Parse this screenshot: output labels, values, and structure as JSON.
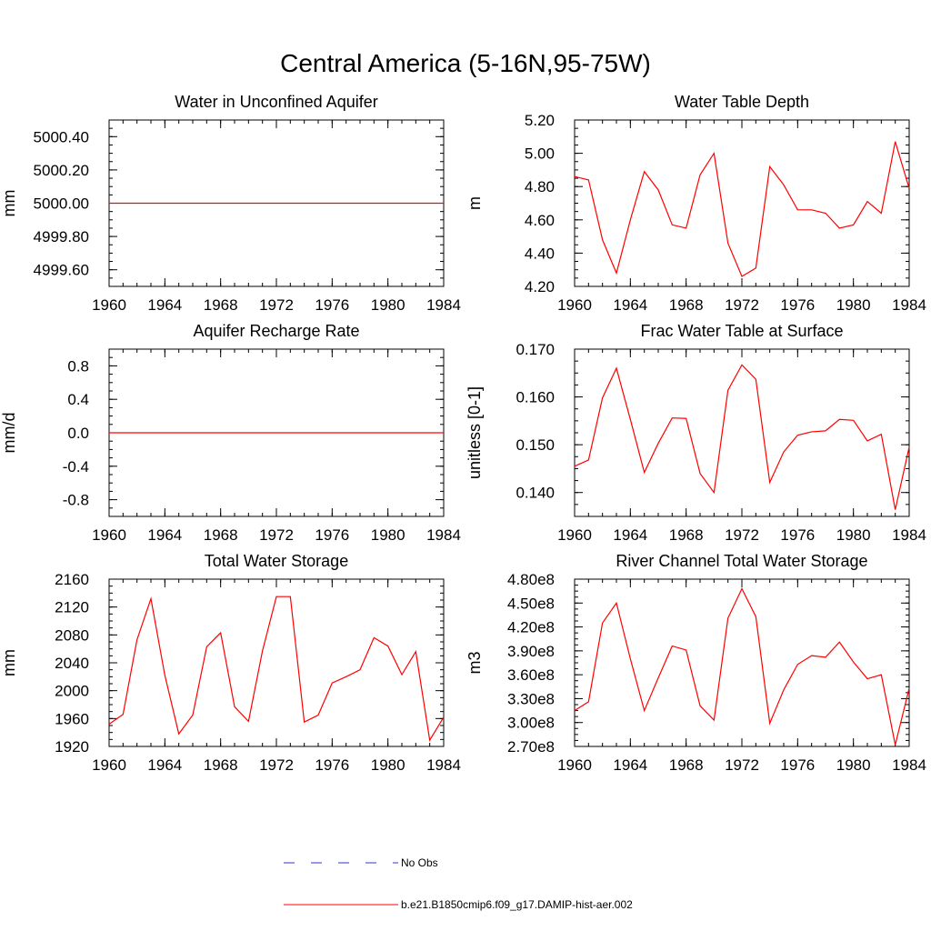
{
  "figure": {
    "title": "Central America (5-16N,95-75W)"
  },
  "colors": {
    "model_line": "#ff0000",
    "obs_line": "#3333cc",
    "axis": "#000000"
  },
  "legend": {
    "entries": [
      {
        "label": "No Obs",
        "style": "dashed",
        "color": "#3333cc"
      },
      {
        "label": "b.e21.B1850cmip6.f09_g17.DAMIP-hist-aer.002",
        "style": "solid",
        "color": "#ff0000"
      }
    ]
  },
  "chart_data": [
    {
      "type": "line",
      "title": "Water in Unconfined Aquifer",
      "ylabel": "mm",
      "xlabel": "",
      "xlim": [
        1960,
        1984
      ],
      "ylim": [
        4999.5,
        5000.5
      ],
      "x_ticks": [
        "1960",
        "1964",
        "1968",
        "1972",
        "1976",
        "1980",
        "1984"
      ],
      "y_ticks": [
        {
          "value": 4999.6,
          "label": "4999.60"
        },
        {
          "value": 4999.8,
          "label": "4999.80"
        },
        {
          "value": 5000.0,
          "label": "5000.00"
        },
        {
          "value": 5000.2,
          "label": "5000.20"
        },
        {
          "value": 5000.4,
          "label": "5000.40"
        }
      ],
      "x": [
        1960,
        1961,
        1962,
        1963,
        1964,
        1965,
        1966,
        1967,
        1968,
        1969,
        1970,
        1971,
        1972,
        1973,
        1974,
        1975,
        1976,
        1977,
        1978,
        1979,
        1980,
        1981,
        1982,
        1983,
        1984
      ],
      "series": [
        {
          "values": [
            5000,
            5000,
            5000,
            5000,
            5000,
            5000,
            5000,
            5000,
            5000,
            5000,
            5000,
            5000,
            5000,
            5000,
            5000,
            5000,
            5000,
            5000,
            5000,
            5000,
            5000,
            5000,
            5000,
            5000,
            5000
          ]
        }
      ]
    },
    {
      "type": "line",
      "title": "Water Table Depth",
      "ylabel": "m",
      "xlabel": "",
      "xlim": [
        1960,
        1984
      ],
      "ylim": [
        4.2,
        5.2
      ],
      "x_ticks": [
        "1960",
        "1964",
        "1968",
        "1972",
        "1976",
        "1980",
        "1984"
      ],
      "y_ticks": [
        {
          "value": 4.2,
          "label": "4.20"
        },
        {
          "value": 4.4,
          "label": "4.40"
        },
        {
          "value": 4.6,
          "label": "4.60"
        },
        {
          "value": 4.8,
          "label": "4.80"
        },
        {
          "value": 5.0,
          "label": "5.00"
        },
        {
          "value": 5.2,
          "label": "5.20"
        }
      ],
      "x": [
        1960,
        1961,
        1962,
        1963,
        1964,
        1965,
        1966,
        1967,
        1968,
        1969,
        1970,
        1971,
        1972,
        1973,
        1974,
        1975,
        1976,
        1977,
        1978,
        1979,
        1980,
        1981,
        1982,
        1983,
        1984
      ],
      "series": [
        {
          "values": [
            4.86,
            4.84,
            4.48,
            4.28,
            4.6,
            4.89,
            4.78,
            4.57,
            4.55,
            4.87,
            5.0,
            4.46,
            4.26,
            4.31,
            4.92,
            4.81,
            4.66,
            4.66,
            4.64,
            4.55,
            4.57,
            4.71,
            4.64,
            5.07,
            4.79
          ]
        }
      ]
    },
    {
      "type": "line",
      "title": "Aquifer Recharge Rate",
      "ylabel": "mm/d",
      "xlabel": "",
      "xlim": [
        1960,
        1984
      ],
      "ylim": [
        -1.0,
        1.0
      ],
      "x_ticks": [
        "1960",
        "1964",
        "1968",
        "1972",
        "1976",
        "1980",
        "1984"
      ],
      "y_ticks": [
        {
          "value": -0.8,
          "label": "-0.8"
        },
        {
          "value": -0.4,
          "label": "-0.4"
        },
        {
          "value": 0.0,
          "label": "0.0"
        },
        {
          "value": 0.4,
          "label": "0.4"
        },
        {
          "value": 0.8,
          "label": "0.8"
        }
      ],
      "x": [
        1960,
        1961,
        1962,
        1963,
        1964,
        1965,
        1966,
        1967,
        1968,
        1969,
        1970,
        1971,
        1972,
        1973,
        1974,
        1975,
        1976,
        1977,
        1978,
        1979,
        1980,
        1981,
        1982,
        1983,
        1984
      ],
      "series": [
        {
          "values": [
            0,
            0,
            0,
            0,
            0,
            0,
            0,
            0,
            0,
            0,
            0,
            0,
            0,
            0,
            0,
            0,
            0,
            0,
            0,
            0,
            0,
            0,
            0,
            0,
            0
          ]
        }
      ]
    },
    {
      "type": "line",
      "title": "Frac Water Table at Surface",
      "ylabel": "unitless [0-1]",
      "xlabel": "",
      "xlim": [
        1960,
        1984
      ],
      "ylim": [
        0.135,
        0.17
      ],
      "x_ticks": [
        "1960",
        "1964",
        "1968",
        "1972",
        "1976",
        "1980",
        "1984"
      ],
      "y_ticks": [
        {
          "value": 0.14,
          "label": "0.140"
        },
        {
          "value": 0.15,
          "label": "0.150"
        },
        {
          "value": 0.16,
          "label": "0.160"
        },
        {
          "value": 0.17,
          "label": "0.170"
        }
      ],
      "x": [
        1960,
        1961,
        1962,
        1963,
        1964,
        1965,
        1966,
        1967,
        1968,
        1969,
        1970,
        1971,
        1972,
        1973,
        1974,
        1975,
        1976,
        1977,
        1978,
        1979,
        1980,
        1981,
        1982,
        1983,
        1984
      ],
      "series": [
        {
          "values": [
            0.1455,
            0.1468,
            0.1598,
            0.166,
            0.1553,
            0.1442,
            0.1503,
            0.1556,
            0.1555,
            0.144,
            0.14,
            0.1614,
            0.1667,
            0.1637,
            0.1421,
            0.1485,
            0.152,
            0.1527,
            0.1529,
            0.1553,
            0.1551,
            0.1508,
            0.1522,
            0.1364,
            0.1495
          ]
        }
      ]
    },
    {
      "type": "line",
      "title": "Total Water Storage",
      "ylabel": "mm",
      "xlabel": "",
      "xlim": [
        1960,
        1984
      ],
      "ylim": [
        1920,
        2160
      ],
      "x_ticks": [
        "1960",
        "1964",
        "1968",
        "1972",
        "1976",
        "1980",
        "1984"
      ],
      "y_ticks": [
        {
          "value": 1920,
          "label": "1920"
        },
        {
          "value": 1960,
          "label": "1960"
        },
        {
          "value": 2000,
          "label": "2000"
        },
        {
          "value": 2040,
          "label": "2040"
        },
        {
          "value": 2080,
          "label": "2080"
        },
        {
          "value": 2120,
          "label": "2120"
        },
        {
          "value": 2160,
          "label": "2160"
        }
      ],
      "x": [
        1960,
        1961,
        1962,
        1963,
        1964,
        1965,
        1966,
        1967,
        1968,
        1969,
        1970,
        1971,
        1972,
        1973,
        1974,
        1975,
        1976,
        1977,
        1978,
        1979,
        1980,
        1981,
        1982,
        1983,
        1984
      ],
      "series": [
        {
          "values": [
            1952,
            1966,
            2073,
            2132,
            2022,
            1938,
            1965,
            2063,
            2083,
            1977,
            1956,
            2057,
            2135,
            2135,
            1955,
            1965,
            2011,
            2020,
            2030,
            2076,
            2064,
            2023,
            2056,
            1929,
            1962
          ]
        }
      ]
    },
    {
      "type": "line",
      "title": "River Channel Total Water Storage",
      "ylabel": "m3",
      "xlabel": "",
      "xlim": [
        1960,
        1984
      ],
      "ylim": [
        270000000,
        480000000
      ],
      "x_ticks": [
        "1960",
        "1964",
        "1968",
        "1972",
        "1976",
        "1980",
        "1984"
      ],
      "y_ticks": [
        {
          "value": 270000000,
          "label": "2.70e8"
        },
        {
          "value": 300000000,
          "label": "3.00e8"
        },
        {
          "value": 330000000,
          "label": "3.30e8"
        },
        {
          "value": 360000000,
          "label": "3.60e8"
        },
        {
          "value": 390000000,
          "label": "3.90e8"
        },
        {
          "value": 420000000,
          "label": "4.20e8"
        },
        {
          "value": 450000000,
          "label": "4.50e8"
        },
        {
          "value": 480000000,
          "label": "4.80e8"
        }
      ],
      "x": [
        1960,
        1961,
        1962,
        1963,
        1964,
        1965,
        1966,
        1967,
        1968,
        1969,
        1970,
        1971,
        1972,
        1973,
        1974,
        1975,
        1976,
        1977,
        1978,
        1979,
        1980,
        1981,
        1982,
        1983,
        1984
      ],
      "series": [
        {
          "values": [
            315000000,
            326000000,
            425000000,
            450000000,
            380000000,
            315000000,
            356000000,
            396000000,
            391000000,
            321000000,
            303000000,
            431000000,
            468000000,
            433000000,
            299000000,
            341000000,
            373000000,
            384000000,
            382000000,
            401000000,
            376000000,
            355000000,
            360000000,
            272000000,
            343000000
          ]
        }
      ]
    }
  ]
}
